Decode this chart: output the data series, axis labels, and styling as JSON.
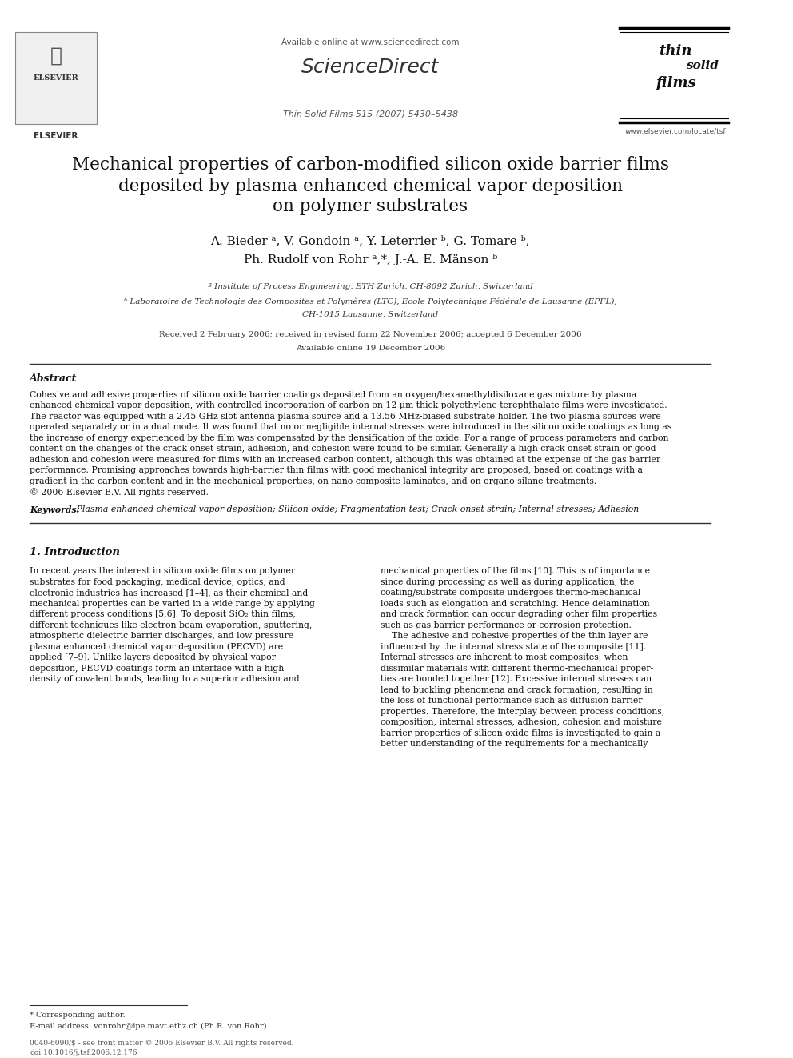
{
  "bg_color": "#ffffff",
  "header_url_text": "Available online at www.sciencedirect.com",
  "sciencedirect_text": "ScienceDirect",
  "journal_name_text": "Thin Solid Films 515 (2007) 5430–5438",
  "journal_logo_lines_text": "thin\nsolid\nfilms",
  "journal_website": "www.elsevier.com/locate/tsf",
  "title_line1": "Mechanical properties of carbon-modified silicon oxide barrier films",
  "title_line2": "deposited by plasma enhanced chemical vapor deposition",
  "title_line3": "on polymer substrates",
  "authors_line1": "A. Bieder ᵃ, V. Gondoin ᵃ, Y. Leterrier ᵇ, G. Tomare ᵇ,",
  "authors_line2": "Ph. Rudolf von Rohr ᵃ,*, J.-A. E. Mänson ᵇ",
  "affil_a": "ª Institute of Process Engineering, ETH Zurich, CH-8092 Zurich, Switzerland",
  "affil_b": "ᵇ Laboratoire de Technologie des Composites et Polymères (LTC), Ecole Polytechnique Fédérale de Lausanne (EPFL),",
  "affil_b2": "CH-1015 Lausanne, Switzerland",
  "received_text": "Received 2 February 2006; received in revised form 22 November 2006; accepted 6 December 2006",
  "available_text": "Available online 19 December 2006",
  "abstract_heading": "Abstract",
  "abstract_text": "Cohesive and adhesive properties of silicon oxide barrier coatings deposited from an oxygen/hexamethyldisiloxane gas mixture by plasma\nenhanced chemical vapor deposition, with controlled incorporation of carbon on 12 μm thick polyethylene terephthalate films were investigated.\nThe reactor was equipped with a 2.45 GHz slot antenna plasma source and a 13.56 MHz-biased substrate holder. The two plasma sources were\noperated separately or in a dual mode. It was found that no or negligible internal stresses were introduced in the silicon oxide coatings as long as\nthe increase of energy experienced by the film was compensated by the densification of the oxide. For a range of process parameters and carbon\ncontent on the changes of the crack onset strain, adhesion, and cohesion were found to be similar. Generally a high crack onset strain or good\nadhesion and cohesion were measured for films with an increased carbon content, although this was obtained at the expense of the gas barrier\nperformance. Promising approaches towards high-barrier thin films with good mechanical integrity are proposed, based on coatings with a\ngradient in the carbon content and in the mechanical properties, on nano-composite laminates, and on organo-silane treatments.\n© 2006 Elsevier B.V. All rights reserved.",
  "keywords_label": "Keywords:",
  "keywords_text": " Plasma enhanced chemical vapor deposition; Silicon oxide; Fragmentation test; Crack onset strain; Internal stresses; Adhesion",
  "section1_heading": "1. Introduction",
  "intro_col1": "In recent years the interest in silicon oxide films on polymer\nsubstrates for food packaging, medical device, optics, and\nelectronic industries has increased [1–4], as their chemical and\nmechanical properties can be varied in a wide range by applying\ndifferent process conditions [5,6]. To deposit SiO₂ thin films,\ndifferent techniques like electron-beam evaporation, sputtering,\natmospheric dielectric barrier discharges, and low pressure\nplasma enhanced chemical vapor deposition (PECVD) are\napplied [7–9]. Unlike layers deposited by physical vapor\ndeposition, PECVD coatings form an interface with a high\ndensity of covalent bonds, leading to a superior adhesion and",
  "intro_col2": "mechanical properties of the films [10]. This is of importance\nsince during processing as well as during application, the\ncoating/substrate composite undergoes thermo-mechanical\nloads such as elongation and scratching. Hence delamination\nand crack formation can occur degrading other film properties\nsuch as gas barrier performance or corrosion protection.\n    The adhesive and cohesive properties of the thin layer are\ninfluenced by the internal stress state of the composite [11].\nInternal stresses are inherent to most composites, when\ndissimilar materials with different thermo-mechanical proper-\nties are bonded together [12]. Excessive internal stresses can\nlead to buckling phenomena and crack formation, resulting in\nthe loss of functional performance such as diffusion barrier\nproperties. Therefore, the interplay between process conditions,\ncomposition, internal stresses, adhesion, cohesion and moisture\nbarrier properties of silicon oxide films is investigated to gain a\nbetter understanding of the requirements for a mechanically",
  "footer_line1": "0040-6090/$ - see front matter © 2006 Elsevier B.V. All rights reserved.",
  "footer_line2": "doi:10.1016/j.tsf.2006.12.176",
  "footnote_star": "* Corresponding author.",
  "footnote_email": "E-mail address: vonrohr@ipe.mavt.ethz.ch (Ph.R. von Rohr)."
}
